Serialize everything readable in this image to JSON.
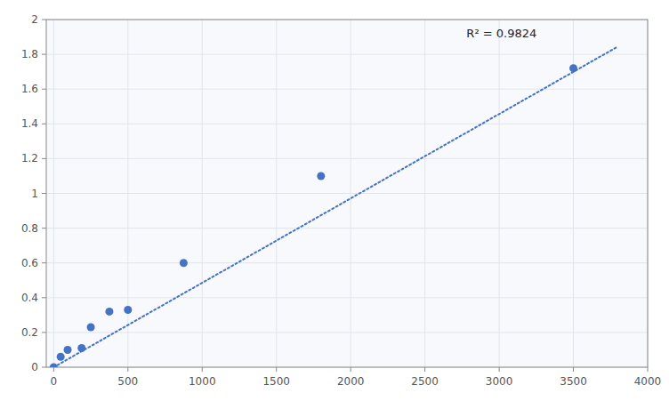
{
  "chart_data": {
    "type": "scatter",
    "series": [
      {
        "type": "scatter",
        "marker": "circle",
        "color": "#4472C4",
        "x": [
          0,
          47,
          94,
          188,
          250,
          375,
          500,
          875,
          1800,
          3500
        ],
        "values": [
          0.0,
          0.06,
          0.1,
          0.11,
          0.23,
          0.32,
          0.33,
          0.6,
          1.1,
          1.72
        ]
      },
      {
        "type": "line",
        "line_style": "dotted",
        "color": "#4472C4",
        "x": [
          0,
          3800
        ],
        "values": [
          0.0,
          1.845
        ]
      }
    ],
    "annotations": [
      {
        "text": "R² = 0.9824",
        "x": 2780,
        "y": 1.88
      }
    ],
    "xlim": [
      -50,
      4000
    ],
    "ylim": [
      0,
      2.0
    ],
    "xticks": [
      0,
      500,
      1000,
      1500,
      2000,
      2500,
      3000,
      3500,
      4000
    ],
    "yticks": [
      0,
      0.2,
      0.4,
      0.6,
      0.8,
      1,
      1.2,
      1.4,
      1.6,
      1.8,
      2
    ],
    "grid": true
  }
}
